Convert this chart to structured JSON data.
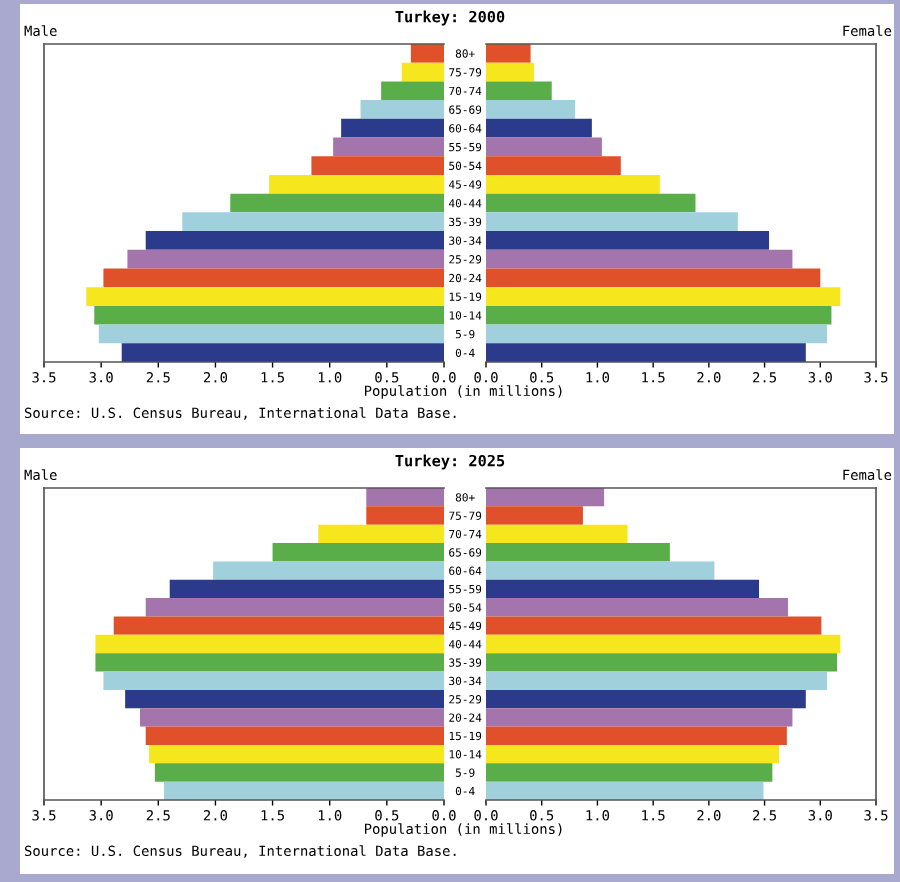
{
  "chart_data": [
    {
      "type": "bar",
      "orientation": "horizontal",
      "title": "Turkey: 2000",
      "xlabel": "Population (in millions)",
      "tick_labels": "x",
      "categories": [
        null,
        null,
        null,
        null,
        null,
        null,
        null,
        null,
        null,
        null,
        null,
        null,
        null,
        null,
        null,
        null,
        null
      ],
      "series": [
        {
          "name": "Male",
          "colors": [
            "#e0502a",
            "#f5e61e",
            "#5aae4a",
            "#a0d0dc",
            "#2c3a8c",
            "#a474ac",
            "#e0502a",
            "#f5e61e",
            "#5aae4a",
            "#a0d0dc",
            "#2c3a8c",
            "#a474ac",
            "#e0502a",
            "#f5e61e",
            "#5aae4a",
            "#a0d0dc",
            "#2c3a8c"
          ],
          "values": [
            0.29,
            0.37,
            0.55,
            0.73,
            0.9,
            0.97,
            1.16,
            1.53,
            1.87,
            2.29,
            2.61,
            2.77,
            2.98,
            3.13,
            3.06,
            3.02,
            2.82
          ]
        }
      ],
      "xlim": [
        3.5,
        0
      ],
      "xticks": [
        3.5,
        {
          "value": 3,
          "label": "3.0"
        },
        2.5,
        {
          "value": 2,
          "label": "2.0"
        },
        1.5,
        {
          "value": 1,
          "label": "1.0"
        },
        0.5,
        {
          "value": 0,
          "label": "0.0"
        }
      ],
      "annotations": [
        "Source: U.S. Census Bureau, International Data Base."
      ]
    },
    {
      "type": "bar",
      "orientation": "horizontal",
      "categories": [
        "80+",
        "75-79",
        "70-74",
        "65-69",
        "60-64",
        "55-59",
        "50-54",
        "45-49",
        "40-44",
        "35-39",
        "30-34",
        "25-29",
        "20-24",
        "15-19",
        "10-14",
        "5-9",
        "0-4"
      ],
      "series": [
        {
          "name": "Female",
          "colors": [
            "#e0502a",
            "#f5e61e",
            "#5aae4a",
            "#a0d0dc",
            "#2c3a8c",
            "#a474ac",
            "#e0502a",
            "#f5e61e",
            "#5aae4a",
            "#a0d0dc",
            "#2c3a8c",
            "#a474ac",
            "#e0502a",
            "#f5e61e",
            "#5aae4a",
            "#a0d0dc",
            "#2c3a8c"
          ],
          "values": [
            0.4,
            0.43,
            0.59,
            0.8,
            0.95,
            1.04,
            1.21,
            1.56,
            1.88,
            2.26,
            2.54,
            2.75,
            3.0,
            3.18,
            3.1,
            3.06,
            2.87
          ]
        }
      ],
      "xlim": [
        0,
        3.5
      ],
      "xticks": [
        {
          "value": 0,
          "label": "0.0"
        },
        0.5,
        {
          "value": 1,
          "label": "1.0"
        },
        1.5,
        {
          "value": 2,
          "label": "2.0"
        },
        2.5,
        {
          "value": 3,
          "label": "3.0"
        },
        3.5
      ]
    },
    {
      "type": "bar",
      "orientation": "horizontal",
      "title": "Turkey: 2025",
      "xlabel": "Population (in millions)",
      "tick_labels": "x",
      "categories": [
        null,
        null,
        null,
        null,
        null,
        null,
        null,
        null,
        null,
        null,
        null,
        null,
        null,
        null,
        null,
        null,
        null
      ],
      "series": [
        {
          "name": "Male",
          "colors": [
            "#a474ac",
            "#e0502a",
            "#f5e61e",
            "#5aae4a",
            "#a0d0dc",
            "#2c3a8c",
            "#a474ac",
            "#e0502a",
            "#f5e61e",
            "#5aae4a",
            "#a0d0dc",
            "#2c3a8c",
            "#a474ac",
            "#e0502a",
            "#f5e61e",
            "#5aae4a",
            "#a0d0dc"
          ],
          "values": [
            0.68,
            0.68,
            1.1,
            1.5,
            2.02,
            2.4,
            2.61,
            2.89,
            3.05,
            3.05,
            2.98,
            2.79,
            2.66,
            2.61,
            2.58,
            2.53,
            2.45
          ]
        }
      ],
      "xlim": [
        3.5,
        0
      ],
      "xticks": [
        3.5,
        {
          "value": 3,
          "label": "3.0"
        },
        2.5,
        {
          "value": 2,
          "label": "2.0"
        },
        1.5,
        {
          "value": 1,
          "label": "1.0"
        },
        0.5,
        {
          "value": 0,
          "label": "0.0"
        }
      ],
      "annotations": [
        "Source: U.S. Census Bureau, International Data Base."
      ]
    },
    {
      "type": "bar",
      "orientation": "horizontal",
      "categories": [
        "80+",
        "75-79",
        "70-74",
        "65-69",
        "60-64",
        "55-59",
        "50-54",
        "45-49",
        "40-44",
        "35-39",
        "30-34",
        "25-29",
        "20-24",
        "15-19",
        "10-14",
        "5-9",
        "0-4"
      ],
      "series": [
        {
          "name": "Female",
          "colors": [
            "#a474ac",
            "#e0502a",
            "#f5e61e",
            "#5aae4a",
            "#a0d0dc",
            "#2c3a8c",
            "#a474ac",
            "#e0502a",
            "#f5e61e",
            "#5aae4a",
            "#a0d0dc",
            "#2c3a8c",
            "#a474ac",
            "#e0502a",
            "#f5e61e",
            "#5aae4a",
            "#a0d0dc"
          ],
          "values": [
            1.06,
            0.87,
            1.27,
            1.65,
            2.05,
            2.45,
            2.71,
            3.01,
            3.18,
            3.15,
            3.06,
            2.87,
            2.75,
            2.7,
            2.63,
            2.57,
            2.49
          ]
        }
      ],
      "xlim": [
        0,
        3.5
      ],
      "xticks": [
        {
          "value": 0,
          "label": "0.0"
        },
        0.5,
        {
          "value": 1,
          "label": "1.0"
        },
        1.5,
        {
          "value": 2,
          "label": "2.0"
        },
        2.5,
        {
          "value": 3,
          "label": "3.0"
        },
        3.5
      ]
    }
  ]
}
